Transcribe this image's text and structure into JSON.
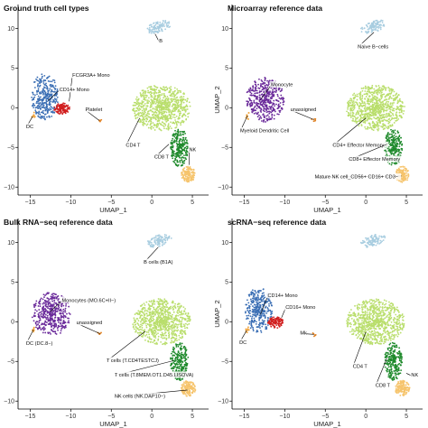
{
  "chart_data": [
    {
      "type": "scatter",
      "title": "Ground truth cell types",
      "xlabel": "UMAP_1",
      "ylabel": "UMAP_2",
      "show_ylabel": false,
      "show_xlabel": true,
      "xlim": [
        -16.5,
        7
      ],
      "ylim": [
        -11,
        13
      ],
      "xticks": [
        -15,
        -10,
        -5,
        0,
        5
      ],
      "yticks": [
        -10,
        -5,
        0,
        5,
        10
      ],
      "grid": false,
      "legend": "none",
      "annotations": [
        {
          "text": "B",
          "x": 0.4,
          "y": 9.3,
          "tx": 0.9,
          "ty": 8.2,
          "anchor": "start"
        },
        {
          "text": "FCGR3A+ Mono",
          "x": -10.2,
          "y": 0.8,
          "tx": -9.8,
          "ty": 3.9,
          "anchor": "start"
        },
        {
          "text": "CD14+ Mono",
          "x": -12.8,
          "y": 0.9,
          "tx": -11.4,
          "ty": 2.1,
          "anchor": "start"
        },
        {
          "text": "Platelet",
          "x": -6.5,
          "y": -1.6,
          "tx": -8.2,
          "ty": -0.4,
          "anchor": "start"
        },
        {
          "text": "DC",
          "x": -14.7,
          "y": -1.1,
          "tx": -15.5,
          "ty": -2.6,
          "anchor": "start"
        },
        {
          "text": "CD4 T",
          "x": -1.5,
          "y": -1.3,
          "tx": -3.2,
          "ty": -4.9,
          "anchor": "start"
        },
        {
          "text": "CD8 T",
          "x": 2.1,
          "y": -4.6,
          "tx": 0.3,
          "ty": -6.4,
          "anchor": "start"
        },
        {
          "text": "NK",
          "x": 4.6,
          "y": -7.2,
          "tx": 4.6,
          "ty": -5.5,
          "anchor": "start"
        }
      ],
      "series": [
        {
          "color": "#a8cde0",
          "cluster": {
            "cx": 0.9,
            "cy": 10.2,
            "rx": 1.6,
            "ry": 0.7,
            "rot": 18,
            "n": 110
          }
        },
        {
          "color": "#3a6eb4",
          "cluster": {
            "cx": -13.2,
            "cy": 1.4,
            "rx": 1.7,
            "ry": 2.9,
            "rot": 0,
            "n": 330
          }
        },
        {
          "color": "#d11f1f",
          "cluster": {
            "cx": -11.1,
            "cy": -0.1,
            "rx": 1.0,
            "ry": 0.7,
            "rot": 0,
            "n": 120
          }
        },
        {
          "color": "#f0a23a",
          "cluster": {
            "cx": -14.6,
            "cy": -1.0,
            "rx": 0.25,
            "ry": 0.5,
            "rot": 0,
            "n": 10
          }
        },
        {
          "color": "#e08020",
          "cluster": {
            "cx": -6.5,
            "cy": -1.6,
            "rx": 0.3,
            "ry": 0.25,
            "rot": 0,
            "n": 6
          }
        },
        {
          "color": "#b9de6c",
          "cluster": {
            "cx": 1.2,
            "cy": 0.0,
            "rx": 3.6,
            "ry": 2.9,
            "rot": 0,
            "n": 820
          }
        },
        {
          "color": "#1f8a2c",
          "cluster": {
            "cx": 3.4,
            "cy": -5.0,
            "rx": 1.1,
            "ry": 2.4,
            "rot": 0,
            "n": 250
          }
        },
        {
          "color": "#f6c46c",
          "cluster": {
            "cx": 4.5,
            "cy": -8.4,
            "rx": 0.9,
            "ry": 1.0,
            "rot": 0,
            "n": 150
          }
        }
      ]
    },
    {
      "type": "scatter",
      "title": "Microarray reference data",
      "xlabel": "UMAP_1",
      "ylabel": "UMAP_2",
      "show_ylabel": true,
      "show_xlabel": true,
      "xlim": [
        -16.5,
        7
      ],
      "ylim": [
        -11,
        13
      ],
      "xticks": [
        -15,
        -10,
        -5,
        0,
        5
      ],
      "yticks": [
        -10,
        -5,
        0,
        5,
        10
      ],
      "grid": false,
      "legend": "none",
      "annotations": [
        {
          "text": "Naive B−cells",
          "x": 1.0,
          "y": 9.5,
          "tx": -1.0,
          "ty": 7.5,
          "anchor": "start"
        },
        {
          "text": "Monocyte",
          "x": -13.0,
          "y": 1.0,
          "tx": -11.7,
          "ty": 2.7,
          "anchor": "start"
        },
        {
          "text": "Myeloid Dendritic Cell",
          "x": -14.6,
          "y": -1.0,
          "tx": -15.5,
          "ty": -3.1,
          "anchor": "start"
        },
        {
          "text": "unassigned",
          "x": -6.4,
          "y": -1.5,
          "tx": -9.3,
          "ty": -0.4,
          "anchor": "start"
        },
        {
          "text": "CD4+ Effector Memory",
          "x": 0.0,
          "y": -1.3,
          "tx": -4.1,
          "ty": -4.9,
          "anchor": "start"
        },
        {
          "text": "CD8+ Effector Memory",
          "x": 2.6,
          "y": -4.6,
          "tx": -2.1,
          "ty": -6.7,
          "anchor": "start"
        },
        {
          "text": "Mature NK cell_CD56+ CD16+ CD3−",
          "x": 4.4,
          "y": -8.6,
          "tx": -6.3,
          "ty": -8.9,
          "anchor": "start"
        }
      ],
      "series": [
        {
          "color": "#a8cde0",
          "cluster": {
            "cx": 0.9,
            "cy": 10.2,
            "rx": 1.6,
            "ry": 0.7,
            "rot": 18,
            "n": 110
          }
        },
        {
          "color": "#6a2a9a",
          "cluster": {
            "cx": -12.4,
            "cy": 1.0,
            "rx": 2.4,
            "ry": 2.8,
            "rot": 0,
            "n": 430
          }
        },
        {
          "color": "#f0a23a",
          "cluster": {
            "cx": -14.6,
            "cy": -1.0,
            "rx": 0.25,
            "ry": 0.5,
            "rot": 0,
            "n": 10
          }
        },
        {
          "color": "#e08020",
          "cluster": {
            "cx": -6.4,
            "cy": -1.5,
            "rx": 0.3,
            "ry": 0.25,
            "rot": 0,
            "n": 6
          }
        },
        {
          "color": "#b9de6c",
          "cluster": {
            "cx": 1.2,
            "cy": 0.0,
            "rx": 3.6,
            "ry": 2.9,
            "rot": 0,
            "n": 820
          }
        },
        {
          "color": "#1f8a2c",
          "cluster": {
            "cx": 3.4,
            "cy": -5.0,
            "rx": 1.1,
            "ry": 2.4,
            "rot": 0,
            "n": 250
          }
        },
        {
          "color": "#f6c46c",
          "cluster": {
            "cx": 4.5,
            "cy": -8.4,
            "rx": 0.9,
            "ry": 1.0,
            "rot": 0,
            "n": 150
          }
        }
      ]
    },
    {
      "type": "scatter",
      "title": "Bulk RNA−seq reference data",
      "xlabel": "UMAP_1",
      "ylabel": "UMAP_2",
      "show_ylabel": false,
      "show_xlabel": true,
      "xlim": [
        -16.5,
        7
      ],
      "ylim": [
        -11,
        13
      ],
      "xticks": [
        -15,
        -10,
        -5,
        0,
        5
      ],
      "yticks": [
        -10,
        -5,
        0,
        5,
        10
      ],
      "grid": false,
      "legend": "none",
      "annotations": [
        {
          "text": "B cells (B1A)",
          "x": 0.8,
          "y": 9.4,
          "tx": -1.0,
          "ty": 7.3,
          "anchor": "start"
        },
        {
          "text": "Monocytes (MO.6C+II−)",
          "x": -12.5,
          "y": 1.3,
          "tx": -11.1,
          "ty": 2.5,
          "anchor": "start"
        },
        {
          "text": "unassigned",
          "x": -6.4,
          "y": -1.5,
          "tx": -9.3,
          "ty": -0.3,
          "anchor": "start"
        },
        {
          "text": "DC (DC.8−)",
          "x": -14.6,
          "y": -1.0,
          "tx": -15.5,
          "ty": -2.9,
          "anchor": "start"
        },
        {
          "text": "T cells (T.CD4TESTCJ)",
          "x": -0.8,
          "y": -1.2,
          "tx": -5.6,
          "ty": -5.1,
          "anchor": "start"
        },
        {
          "text": "T cells (T.8MEM.OT1.D45.LISOVA)",
          "x": 2.7,
          "y": -4.9,
          "tx": -4.6,
          "ty": -6.9,
          "anchor": "start"
        },
        {
          "text": "NK cells (NK.DAP10−)",
          "x": 4.4,
          "y": -8.6,
          "tx": -4.6,
          "ty": -9.6,
          "anchor": "start"
        }
      ],
      "series": [
        {
          "color": "#a8cde0",
          "cluster": {
            "cx": 0.9,
            "cy": 10.2,
            "rx": 1.6,
            "ry": 0.7,
            "rot": 18,
            "n": 110
          }
        },
        {
          "color": "#6a2a9a",
          "cluster": {
            "cx": -12.4,
            "cy": 1.0,
            "rx": 2.4,
            "ry": 2.8,
            "rot": 0,
            "n": 430
          }
        },
        {
          "color": "#f0a23a",
          "cluster": {
            "cx": -14.6,
            "cy": -1.0,
            "rx": 0.25,
            "ry": 0.5,
            "rot": 0,
            "n": 10
          }
        },
        {
          "color": "#e08020",
          "cluster": {
            "cx": -6.4,
            "cy": -1.5,
            "rx": 0.3,
            "ry": 0.25,
            "rot": 0,
            "n": 6
          }
        },
        {
          "color": "#b9de6c",
          "cluster": {
            "cx": 1.2,
            "cy": 0.0,
            "rx": 3.6,
            "ry": 2.9,
            "rot": 0,
            "n": 820
          }
        },
        {
          "color": "#1f8a2c",
          "cluster": {
            "cx": 3.4,
            "cy": -5.0,
            "rx": 1.1,
            "ry": 2.4,
            "rot": 0,
            "n": 250
          }
        },
        {
          "color": "#f6c46c",
          "cluster": {
            "cx": 4.5,
            "cy": -8.4,
            "rx": 0.9,
            "ry": 1.0,
            "rot": 0,
            "n": 150
          }
        }
      ]
    },
    {
      "type": "scatter",
      "title": "scRNA−seq reference data",
      "xlabel": "UMAP_1",
      "ylabel": "UMAP_2",
      "show_ylabel": true,
      "show_xlabel": true,
      "xlim": [
        -16.5,
        7
      ],
      "ylim": [
        -11,
        13
      ],
      "xticks": [
        -15,
        -10,
        -5,
        0,
        5
      ],
      "yticks": [
        -10,
        -5,
        0,
        5,
        10
      ],
      "grid": false,
      "legend": "none",
      "annotations": [
        {
          "text": "CD14+ Mono",
          "x": -13.0,
          "y": 0.9,
          "tx": -12.1,
          "ty": 3.1,
          "anchor": "start"
        },
        {
          "text": "CD16+ Mono",
          "x": -10.4,
          "y": 0.5,
          "tx": -9.9,
          "ty": 1.6,
          "anchor": "start"
        },
        {
          "text": "Mk",
          "x": -6.4,
          "y": -1.6,
          "tx": -8.1,
          "ty": -1.6,
          "anchor": "start"
        },
        {
          "text": "DC",
          "x": -14.7,
          "y": -1.1,
          "tx": -15.6,
          "ty": -2.8,
          "anchor": "start"
        },
        {
          "text": "CD4 T",
          "x": 0.0,
          "y": -1.3,
          "tx": -1.6,
          "ty": -5.8,
          "anchor": "start"
        },
        {
          "text": "CD8 T",
          "x": 2.6,
          "y": -4.6,
          "tx": 1.2,
          "ty": -8.2,
          "anchor": "start"
        },
        {
          "text": "NK",
          "x": 5.0,
          "y": -6.5,
          "tx": 5.6,
          "ty": -6.9,
          "anchor": "start"
        }
      ],
      "series": [
        {
          "color": "#a8cde0",
          "cluster": {
            "cx": 0.9,
            "cy": 10.2,
            "rx": 1.6,
            "ry": 0.7,
            "rot": 18,
            "n": 110
          }
        },
        {
          "color": "#3a6eb4",
          "cluster": {
            "cx": -13.2,
            "cy": 1.4,
            "rx": 1.7,
            "ry": 2.9,
            "rot": 0,
            "n": 330
          }
        },
        {
          "color": "#d11f1f",
          "cluster": {
            "cx": -11.1,
            "cy": -0.1,
            "rx": 1.0,
            "ry": 0.7,
            "rot": 0,
            "n": 120
          }
        },
        {
          "color": "#f0a23a",
          "cluster": {
            "cx": -14.6,
            "cy": -1.0,
            "rx": 0.25,
            "ry": 0.5,
            "rot": 0,
            "n": 10
          }
        },
        {
          "color": "#e08020",
          "cluster": {
            "cx": -6.4,
            "cy": -1.6,
            "rx": 0.3,
            "ry": 0.25,
            "rot": 0,
            "n": 6
          }
        },
        {
          "color": "#b9de6c",
          "cluster": {
            "cx": 1.2,
            "cy": 0.0,
            "rx": 3.6,
            "ry": 2.9,
            "rot": 0,
            "n": 820
          }
        },
        {
          "color": "#1f8a2c",
          "cluster": {
            "cx": 3.4,
            "cy": -5.0,
            "rx": 1.1,
            "ry": 2.4,
            "rot": 0,
            "n": 250
          }
        },
        {
          "color": "#f6c46c",
          "cluster": {
            "cx": 4.5,
            "cy": -8.4,
            "rx": 0.9,
            "ry": 1.0,
            "rot": 0,
            "n": 150
          }
        }
      ]
    }
  ]
}
